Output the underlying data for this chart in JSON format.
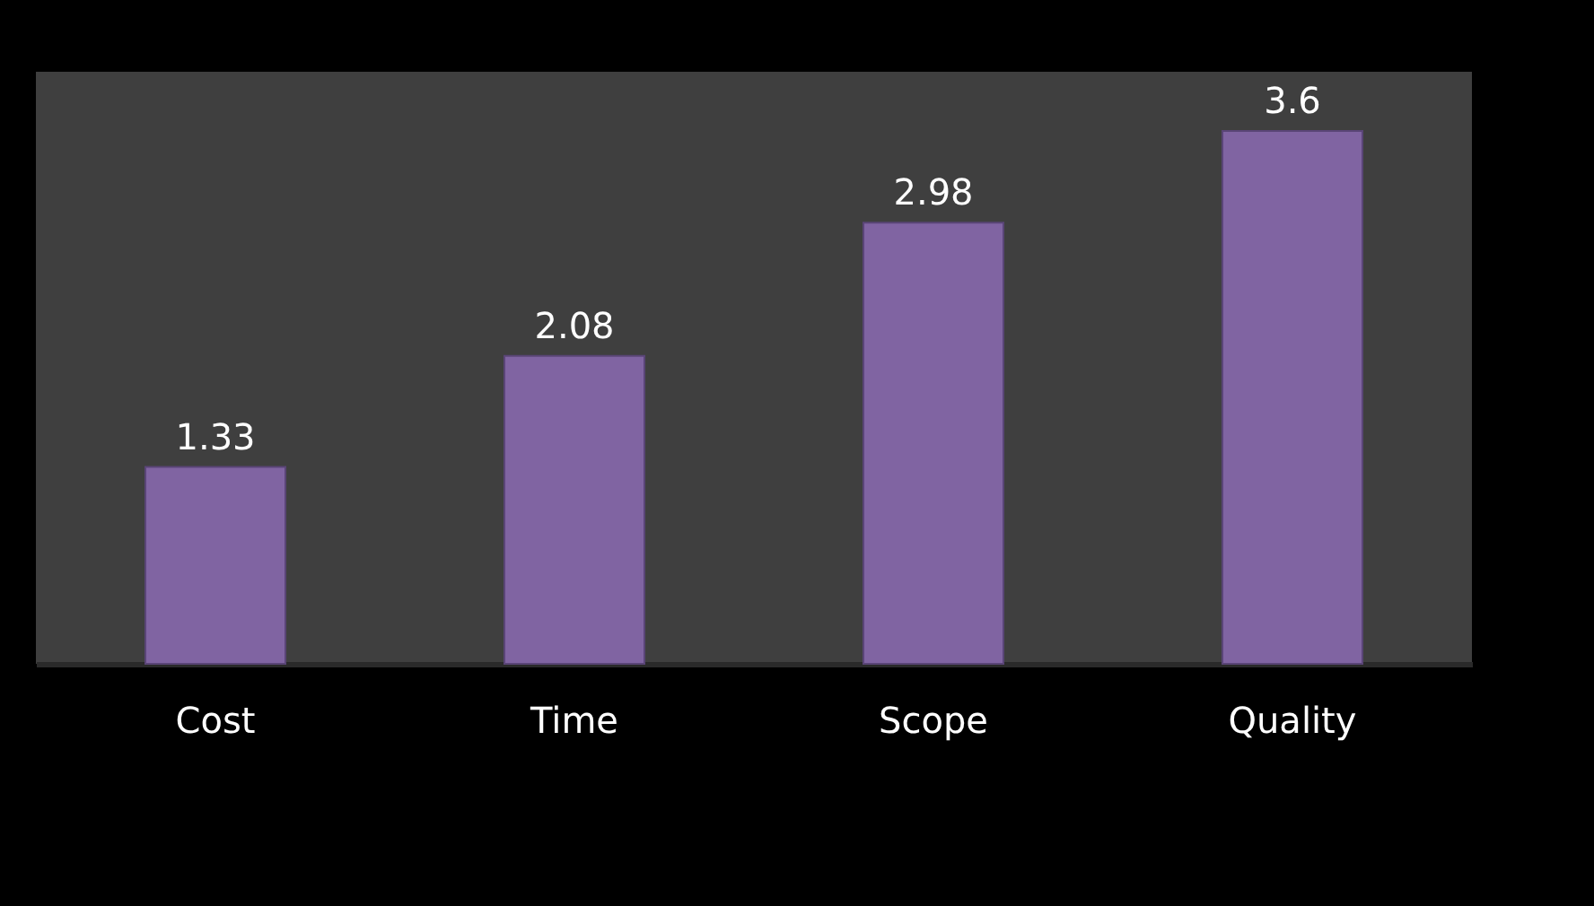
{
  "chart_data": {
    "type": "bar",
    "categories": [
      "Cost",
      "Time",
      "Scope",
      "Quality"
    ],
    "values": [
      1.33,
      2.08,
      2.98,
      3.6
    ],
    "color": "#8064a2",
    "data_labels": true
  }
}
